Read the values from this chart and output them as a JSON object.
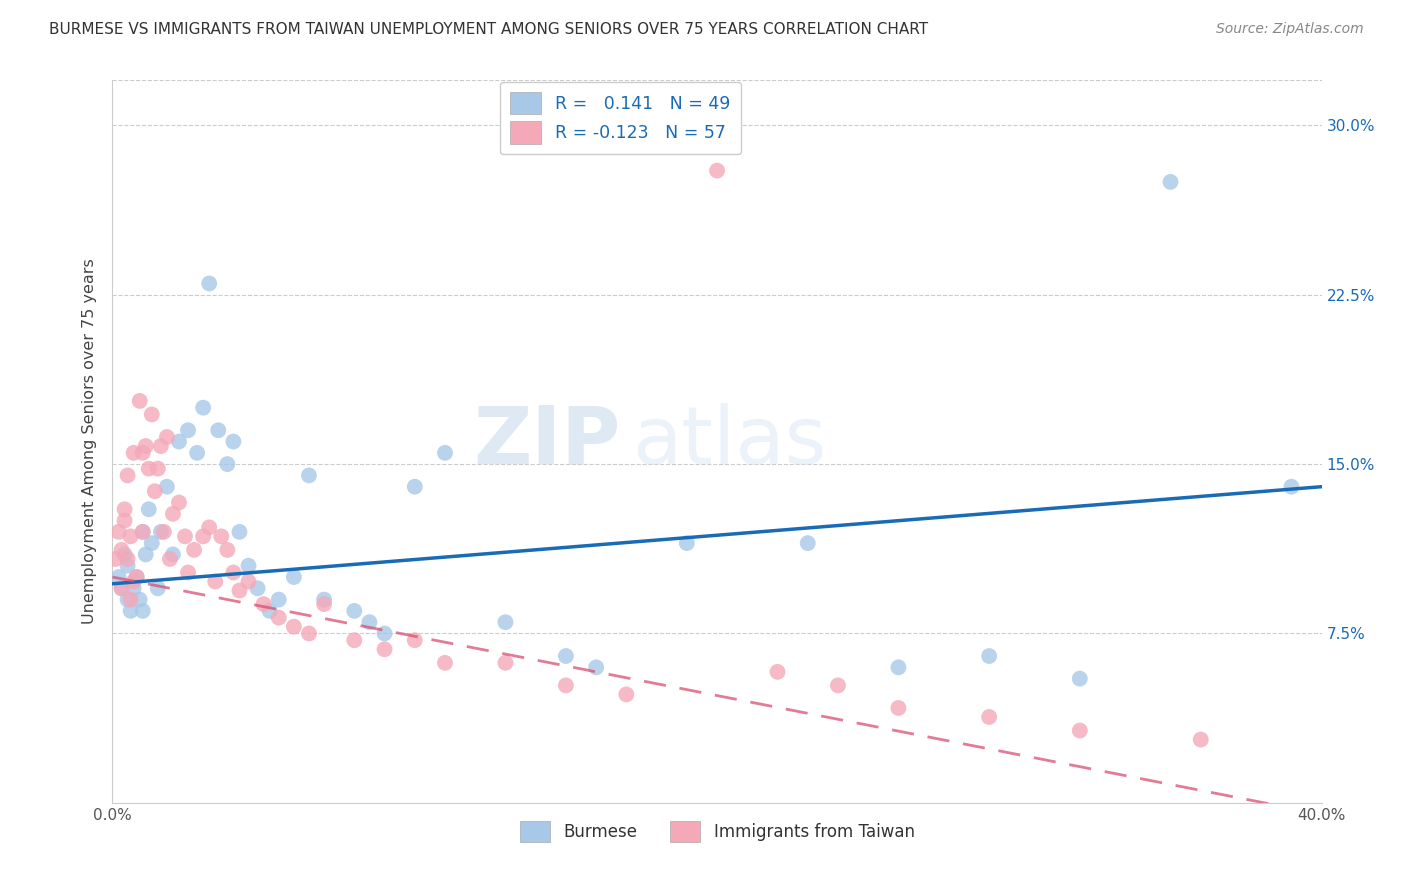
{
  "title": "BURMESE VS IMMIGRANTS FROM TAIWAN UNEMPLOYMENT AMONG SENIORS OVER 75 YEARS CORRELATION CHART",
  "source": "Source: ZipAtlas.com",
  "ylabel": "Unemployment Among Seniors over 75 years",
  "xmin": 0.0,
  "xmax": 0.4,
  "ymin": 0.0,
  "ymax": 0.32,
  "xticks": [
    0.0,
    0.08,
    0.16,
    0.24,
    0.32,
    0.4
  ],
  "yticks": [
    0.0,
    0.075,
    0.15,
    0.225,
    0.3
  ],
  "burmese_color": "#a8c8e8",
  "taiwan_color": "#f4a8b8",
  "burmese_line_color": "#1a6bb5",
  "taiwan_line_color": "#d94f70",
  "watermark_zip": "ZIP",
  "watermark_atlas": "atlas",
  "burmese_x": [
    0.002,
    0.003,
    0.004,
    0.005,
    0.005,
    0.006,
    0.007,
    0.008,
    0.009,
    0.01,
    0.01,
    0.011,
    0.012,
    0.013,
    0.015,
    0.016,
    0.018,
    0.02,
    0.022,
    0.025,
    0.028,
    0.03,
    0.032,
    0.035,
    0.038,
    0.04,
    0.042,
    0.045,
    0.048,
    0.052,
    0.055,
    0.06,
    0.065,
    0.07,
    0.08,
    0.085,
    0.09,
    0.1,
    0.11,
    0.13,
    0.15,
    0.16,
    0.19,
    0.23,
    0.26,
    0.29,
    0.32,
    0.35,
    0.39
  ],
  "burmese_y": [
    0.1,
    0.095,
    0.11,
    0.105,
    0.09,
    0.085,
    0.095,
    0.1,
    0.09,
    0.12,
    0.085,
    0.11,
    0.13,
    0.115,
    0.095,
    0.12,
    0.14,
    0.11,
    0.16,
    0.165,
    0.155,
    0.175,
    0.23,
    0.165,
    0.15,
    0.16,
    0.12,
    0.105,
    0.095,
    0.085,
    0.09,
    0.1,
    0.145,
    0.09,
    0.085,
    0.08,
    0.075,
    0.14,
    0.155,
    0.08,
    0.065,
    0.06,
    0.115,
    0.115,
    0.06,
    0.065,
    0.055,
    0.275,
    0.14
  ],
  "taiwan_x": [
    0.001,
    0.002,
    0.003,
    0.003,
    0.004,
    0.004,
    0.005,
    0.005,
    0.006,
    0.006,
    0.007,
    0.007,
    0.008,
    0.009,
    0.01,
    0.01,
    0.011,
    0.012,
    0.013,
    0.014,
    0.015,
    0.016,
    0.017,
    0.018,
    0.019,
    0.02,
    0.022,
    0.024,
    0.025,
    0.027,
    0.03,
    0.032,
    0.034,
    0.036,
    0.038,
    0.04,
    0.042,
    0.045,
    0.05,
    0.055,
    0.06,
    0.065,
    0.07,
    0.08,
    0.09,
    0.1,
    0.11,
    0.13,
    0.15,
    0.17,
    0.2,
    0.22,
    0.24,
    0.26,
    0.29,
    0.32,
    0.36
  ],
  "taiwan_y": [
    0.108,
    0.12,
    0.095,
    0.112,
    0.125,
    0.13,
    0.145,
    0.108,
    0.118,
    0.09,
    0.098,
    0.155,
    0.1,
    0.178,
    0.12,
    0.155,
    0.158,
    0.148,
    0.172,
    0.138,
    0.148,
    0.158,
    0.12,
    0.162,
    0.108,
    0.128,
    0.133,
    0.118,
    0.102,
    0.112,
    0.118,
    0.122,
    0.098,
    0.118,
    0.112,
    0.102,
    0.094,
    0.098,
    0.088,
    0.082,
    0.078,
    0.075,
    0.088,
    0.072,
    0.068,
    0.072,
    0.062,
    0.062,
    0.052,
    0.048,
    0.28,
    0.058,
    0.052,
    0.042,
    0.038,
    0.032,
    0.028
  ]
}
